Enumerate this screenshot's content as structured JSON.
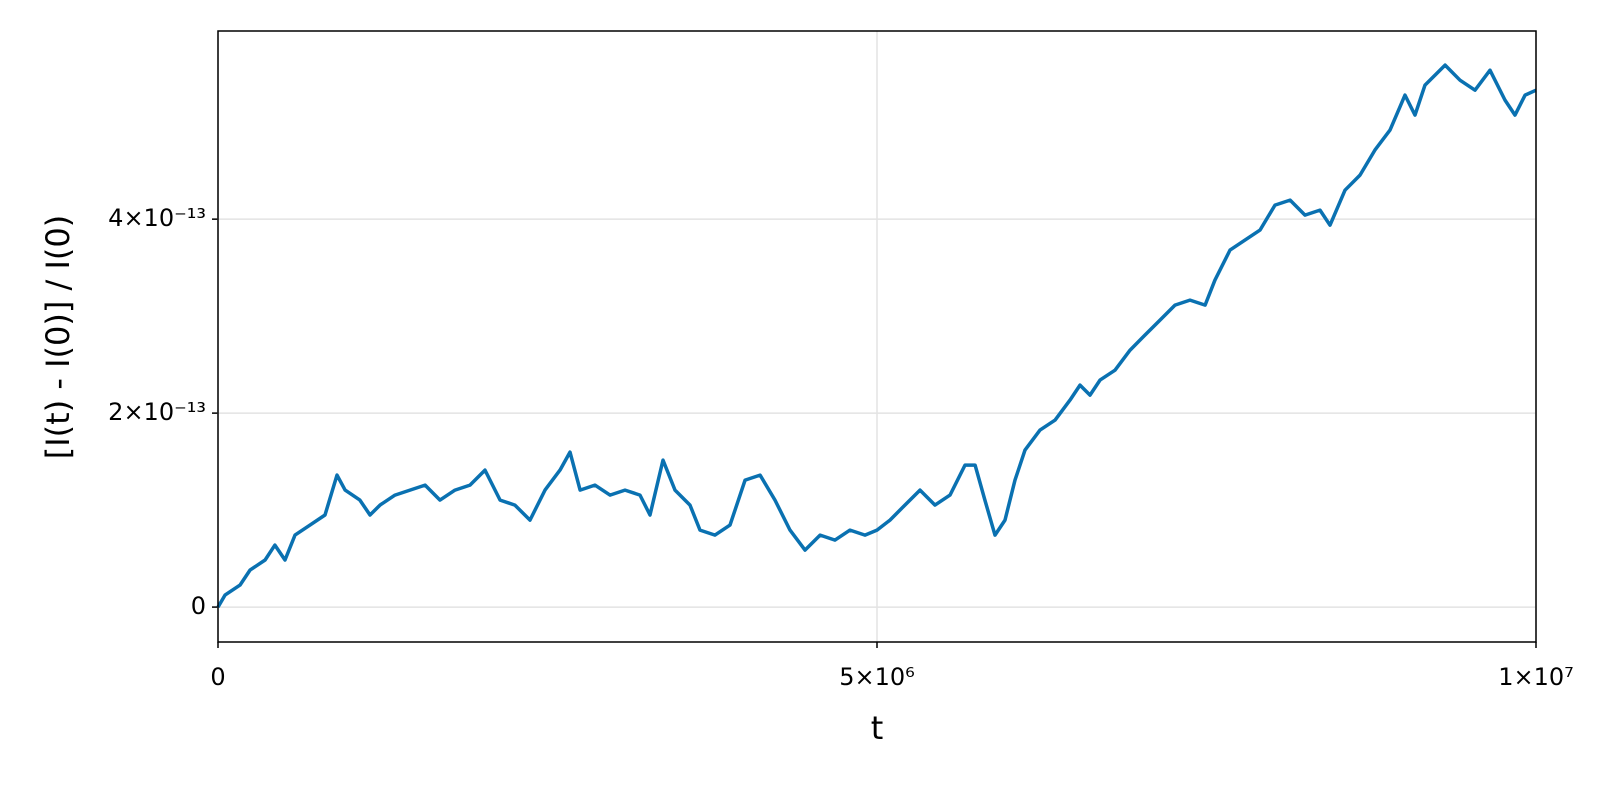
{
  "chart_data": {
    "type": "line",
    "x_label": "t",
    "y_label": "[I(t) - I(0)] / I(0)",
    "xlim": [
      0,
      10000000
    ],
    "ylim": [
      -3.6e-14,
      5.94e-13
    ],
    "xticks": [
      0,
      {
        "value": 5000000,
        "label": "5×10⁶"
      },
      {
        "value": 10000000,
        "label": "1×10⁷"
      }
    ],
    "yticks": [
      0,
      {
        "value": 2e-13,
        "label": "2×10⁻¹³"
      },
      {
        "value": 4e-13,
        "label": "4×10⁻¹³"
      }
    ],
    "grid": true,
    "x": [
      0,
      53000,
      167000,
      243000,
      357000,
      432000,
      508000,
      584000,
      698000,
      812000,
      903000,
      964000,
      1077000,
      1153000,
      1229000,
      1343000,
      1457000,
      1571000,
      1684000,
      1798000,
      1912000,
      2026000,
      2140000,
      2253000,
      2367000,
      2481000,
      2595000,
      2671000,
      2747000,
      2860000,
      2974000,
      3088000,
      3202000,
      3278000,
      3376000,
      3467000,
      3581000,
      3657000,
      3771000,
      3885000,
      3999000,
      4113000,
      4226000,
      4340000,
      4454000,
      4568000,
      4681000,
      4795000,
      4909000,
      5000000,
      5099000,
      5212000,
      5326000,
      5440000,
      5554000,
      5668000,
      5744000,
      5819000,
      5895000,
      5971000,
      6047000,
      6123000,
      6237000,
      6351000,
      6464000,
      6540000,
      6616000,
      6692000,
      6806000,
      6920000,
      7033000,
      7147000,
      7261000,
      7375000,
      7489000,
      7564000,
      7678000,
      7792000,
      7906000,
      8020000,
      8134000,
      8247000,
      8361000,
      8437000,
      8551000,
      8665000,
      8778000,
      8892000,
      9006000,
      9082000,
      9158000,
      9310000,
      9423000,
      9537000,
      9651000,
      9765000,
      9841000,
      9917000,
      10000000
    ],
    "series": [
      {
        "color": "#0a71b1",
        "values": [
          0,
          1.24e-14,
          2.27e-14,
          3.81e-14,
          4.85e-14,
          6.39e-14,
          4.85e-14,
          7.42e-14,
          8.45e-14,
          9.49e-14,
          1.361e-13,
          1.206e-13,
          1.103e-13,
          9.49e-14,
          1.052e-13,
          1.155e-13,
          1.206e-13,
          1.258e-13,
          1.103e-13,
          1.206e-13,
          1.258e-13,
          1.412e-13,
          1.103e-13,
          1.052e-13,
          8.97e-14,
          1.206e-13,
          1.412e-13,
          1.598e-13,
          1.206e-13,
          1.258e-13,
          1.155e-13,
          1.206e-13,
          1.155e-13,
          9.49e-14,
          1.516e-13,
          1.206e-13,
          1.052e-13,
          7.94e-14,
          7.42e-14,
          8.45e-14,
          1.309e-13,
          1.361e-13,
          1.103e-13,
          7.94e-14,
          5.88e-14,
          7.42e-14,
          6.91e-14,
          7.94e-14,
          7.42e-14,
          7.94e-14,
          8.97e-14,
          1.052e-13,
          1.206e-13,
          1.052e-13,
          1.155e-13,
          1.464e-13,
          1.464e-13,
          1.103e-13,
          7.42e-14,
          8.97e-14,
          1.309e-13,
          1.619e-13,
          1.825e-13,
          1.928e-13,
          2.134e-13,
          2.289e-13,
          2.186e-13,
          2.34e-13,
          2.443e-13,
          2.65e-13,
          2.804e-13,
          2.959e-13,
          3.114e-13,
          3.165e-13,
          3.114e-13,
          3.371e-13,
          3.681e-13,
          3.784e-13,
          3.887e-13,
          4.145e-13,
          4.196e-13,
          4.042e-13,
          4.093e-13,
          3.938e-13,
          4.299e-13,
          4.454e-13,
          4.712e-13,
          4.918e-13,
          5.279e-13,
          5.073e-13,
          5.382e-13,
          5.588e-13,
          5.433e-13,
          5.33e-13,
          5.536e-13,
          5.227e-13,
          5.073e-13,
          5.279e-13,
          5.33e-13
        ]
      }
    ]
  }
}
